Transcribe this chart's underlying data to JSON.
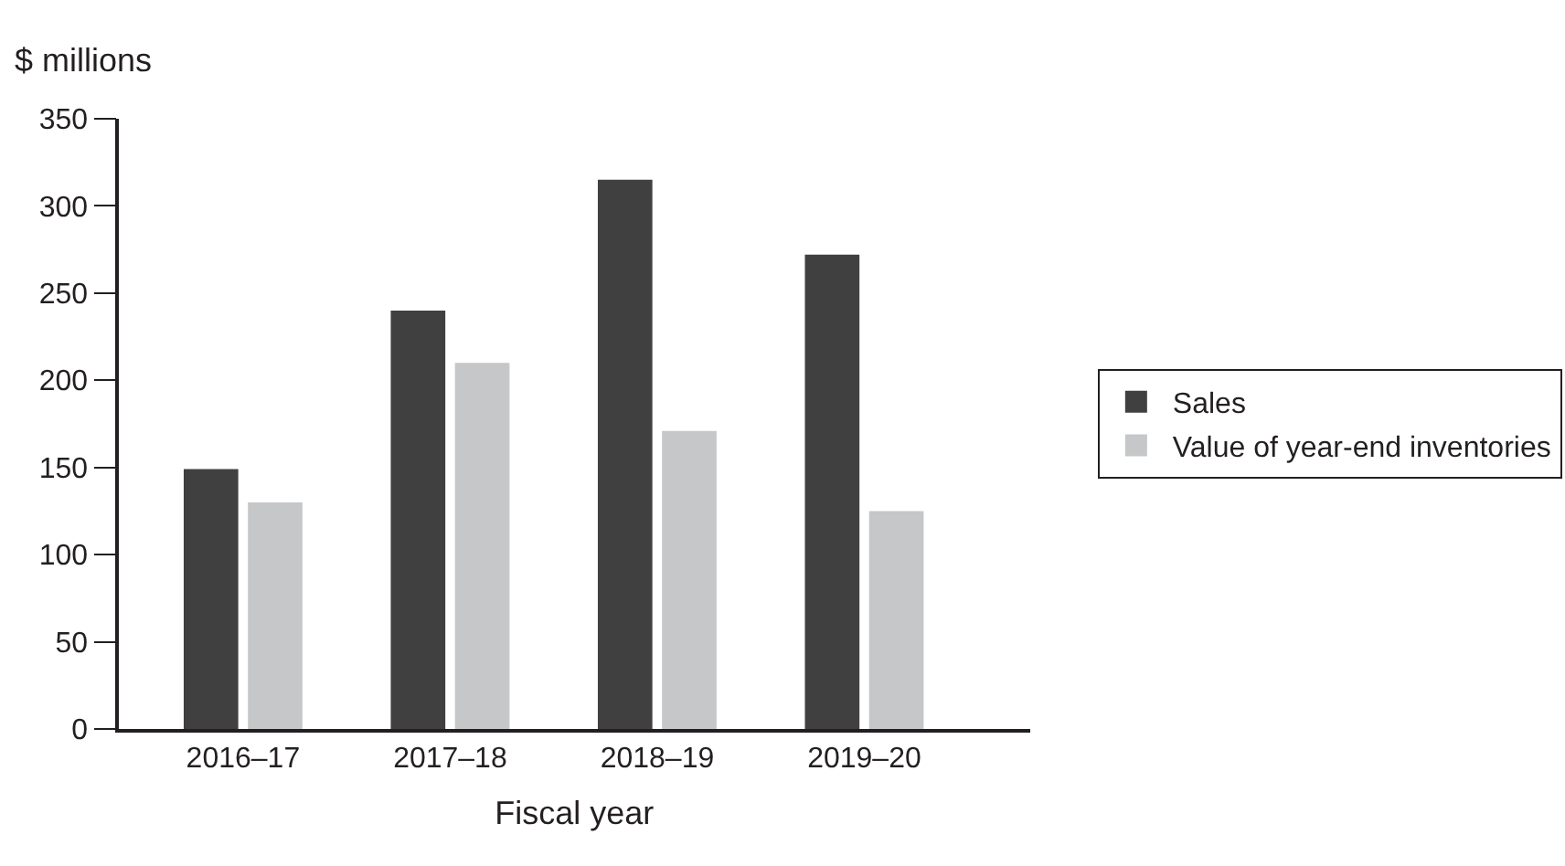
{
  "chart_data": {
    "type": "bar",
    "xlabel": "Fiscal year",
    "ylabel": "$ millions",
    "categories": [
      "2016–17",
      "2017–18",
      "2018–19",
      "2019–20"
    ],
    "series": [
      {
        "name": "Sales",
        "color": "#404040",
        "values": [
          149,
          240,
          315,
          272
        ]
      },
      {
        "name": "Value of year-end inventories",
        "color": "#c6c7c9",
        "values": [
          130,
          210,
          171,
          125
        ]
      }
    ],
    "ylim": [
      0,
      350
    ],
    "yticks": [
      0,
      50,
      100,
      150,
      200,
      250,
      300,
      350
    ],
    "legend": "right"
  }
}
